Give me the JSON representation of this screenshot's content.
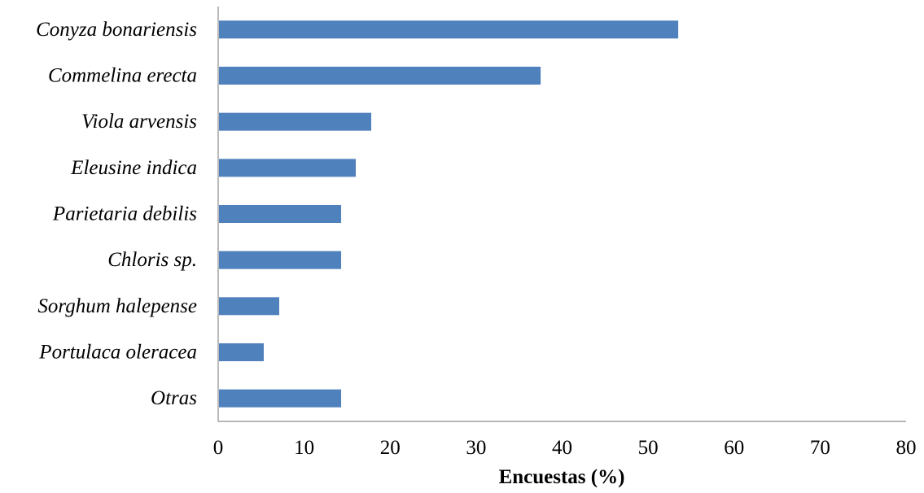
{
  "chart_data": {
    "type": "bar",
    "orientation": "horizontal",
    "categories": [
      "Conyza bonariensis",
      "Commelina erecta",
      "Viola arvensis",
      "Eleusine indica",
      "Parietaria debilis",
      "Chloris sp.",
      "Sorghum halepense",
      "Portulaca oleracea",
      "Otras"
    ],
    "values": [
      53.5,
      37.5,
      17.8,
      16.0,
      14.3,
      14.3,
      7.1,
      5.3,
      14.3
    ],
    "xlabel": "Encuestas (%)",
    "ylabel": "",
    "title": "",
    "xlim": [
      0,
      80
    ],
    "xticks": [
      "0",
      "10",
      "20",
      "30",
      "40",
      "50",
      "60",
      "70",
      "80"
    ],
    "grid": false,
    "legend": "none",
    "bar_color": "#4f81bd"
  }
}
